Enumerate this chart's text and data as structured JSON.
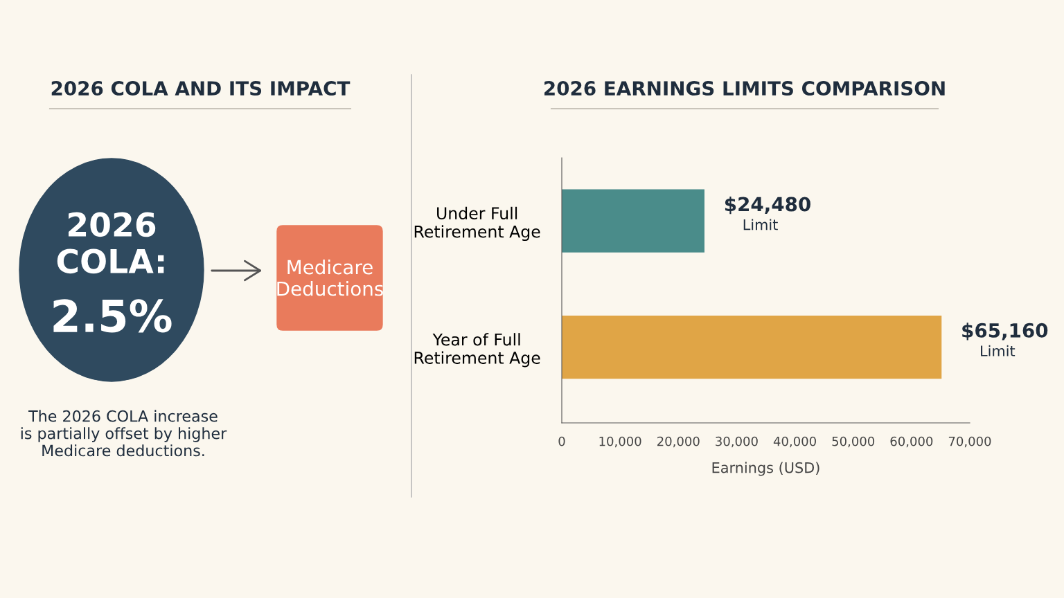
{
  "chart_data": [
    {
      "type": "other",
      "title": "2026 COLA AND ITS IMPACT",
      "annotations": [
        "2026\nCOLA:",
        "2.5%",
        "Medicare\nDeductions",
        "The 2026 COLA increase\nis partially offset by higher\nMedicare deductions."
      ],
      "colors": [
        "#2f4a5f",
        "#e97b5c"
      ]
    },
    {
      "type": "bar",
      "orientation": "horizontal",
      "title": "2026 EARNINGS LIMITS COMPARISON",
      "categories": [
        "Under Full\nRetirement Age",
        "Year of Full\nRetirement Age"
      ],
      "values": [
        24480,
        65160
      ],
      "colors": [
        "#4a8c8a",
        "#e0a546"
      ],
      "value_labels": [
        "$24,480\nLimit",
        "$65,160\nLimit"
      ],
      "xlabel": "Earnings (USD)",
      "xlim": [
        0,
        70000
      ],
      "xticks": [
        0,
        {
          "value": 10000,
          "label": "10,000"
        },
        {
          "value": 20000,
          "label": "20,000"
        },
        {
          "value": 30000,
          "label": "30,000"
        },
        {
          "value": 40000,
          "label": "40,000"
        },
        {
          "value": 50000,
          "label": "50,000"
        },
        {
          "value": 60000,
          "label": "60,000"
        },
        {
          "value": 70000,
          "label": "70,000"
        }
      ],
      "grid": false
    }
  ]
}
